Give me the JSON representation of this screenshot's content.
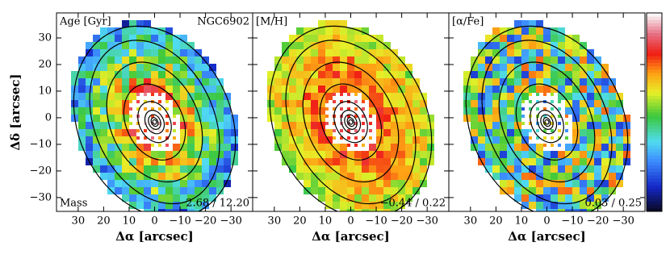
{
  "chart_data": [
    {
      "type": "map",
      "title": "Age [Gyr]",
      "subtitle": "NGC6902",
      "annotation": "Mass",
      "range_label": "2.68 / 12.20",
      "xlabel": "Δα [arcsec]",
      "ylabel": "Δδ [arcsec]",
      "xlim": [
        38.5,
        -38.5
      ],
      "ylim": [
        -35.2,
        39.4
      ],
      "xticks": [
        30,
        20,
        10,
        0,
        {
          "value": -10,
          "label": "−10"
        },
        {
          "value": -20,
          "label": "−20"
        },
        {
          "value": -30,
          "label": "−30"
        }
      ],
      "yticks": [
        {
          "value": -30,
          "label": "−30"
        },
        {
          "value": -20,
          "label": "−20"
        },
        {
          "value": -10,
          "label": "−10"
        },
        0,
        10,
        20,
        30
      ]
    },
    {
      "type": "map",
      "title": "[M/H]",
      "range_label": "−0.44 / 0.22",
      "xlabel": "Δα [arcsec]",
      "xlim": [
        38.5,
        -38.5
      ],
      "ylim": [
        -35.2,
        39.4
      ],
      "xticks": [
        30,
        20,
        10,
        0,
        {
          "value": -10,
          "label": "−10"
        },
        {
          "value": -20,
          "label": "−20"
        },
        {
          "value": -30,
          "label": "−30"
        }
      ],
      "yticks": [
        -30,
        -20,
        -10,
        0,
        10,
        20,
        30
      ]
    },
    {
      "type": "map",
      "title": "[α/Fe]",
      "range_label": "0.03 / 0.25",
      "xlabel": "Δα [arcsec]",
      "xlim": [
        38.5,
        -38.5
      ],
      "ylim": [
        -35.2,
        39.4
      ],
      "xticks": [
        30,
        20,
        10,
        0,
        {
          "value": -10,
          "label": "−10"
        },
        {
          "value": -20,
          "label": "−20"
        },
        {
          "value": -30,
          "label": "−30"
        }
      ],
      "yticks": [
        -30,
        -20,
        -10,
        0,
        10,
        20,
        30
      ]
    }
  ]
}
